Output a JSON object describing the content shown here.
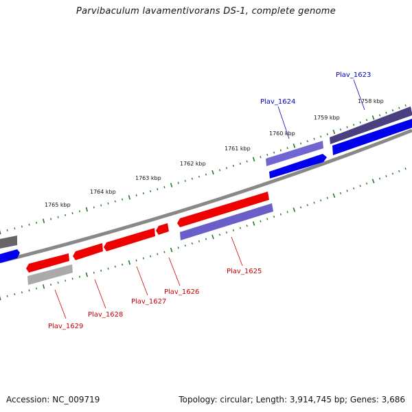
{
  "title": "Parvibaculum lavamentivorans DS-1, complete genome",
  "footer": {
    "accession": "Accession: NC_009719",
    "topology": "Topology: circular; Length: 3,914,745 bp; Genes: 3,686"
  },
  "colors": {
    "backbone": "#888888",
    "tick": "#1f7a1f",
    "gene_red": "#ee0000",
    "gene_blue": "#0000ee",
    "gene_purple": "#6a5fc8",
    "gene_darkpurple": "#4a3f80",
    "gene_gray": "#9a9a9a",
    "gene_darkgray": "#666666",
    "label_red": "#cc0000",
    "label_blue": "#0000bb"
  },
  "tick_labels": [
    "1758 kbp",
    "1759 kbp",
    "1760 kbp",
    "1761 kbp",
    "1763 kbp",
    "1764 kbp",
    "1765 kbp"
  ],
  "gene_labels": [
    "Plav_1623",
    "Plav_1624",
    "Plav_1625",
    "Plav_1626",
    "Plav_1627",
    "Plav_1628",
    "Plav_1629"
  ]
}
